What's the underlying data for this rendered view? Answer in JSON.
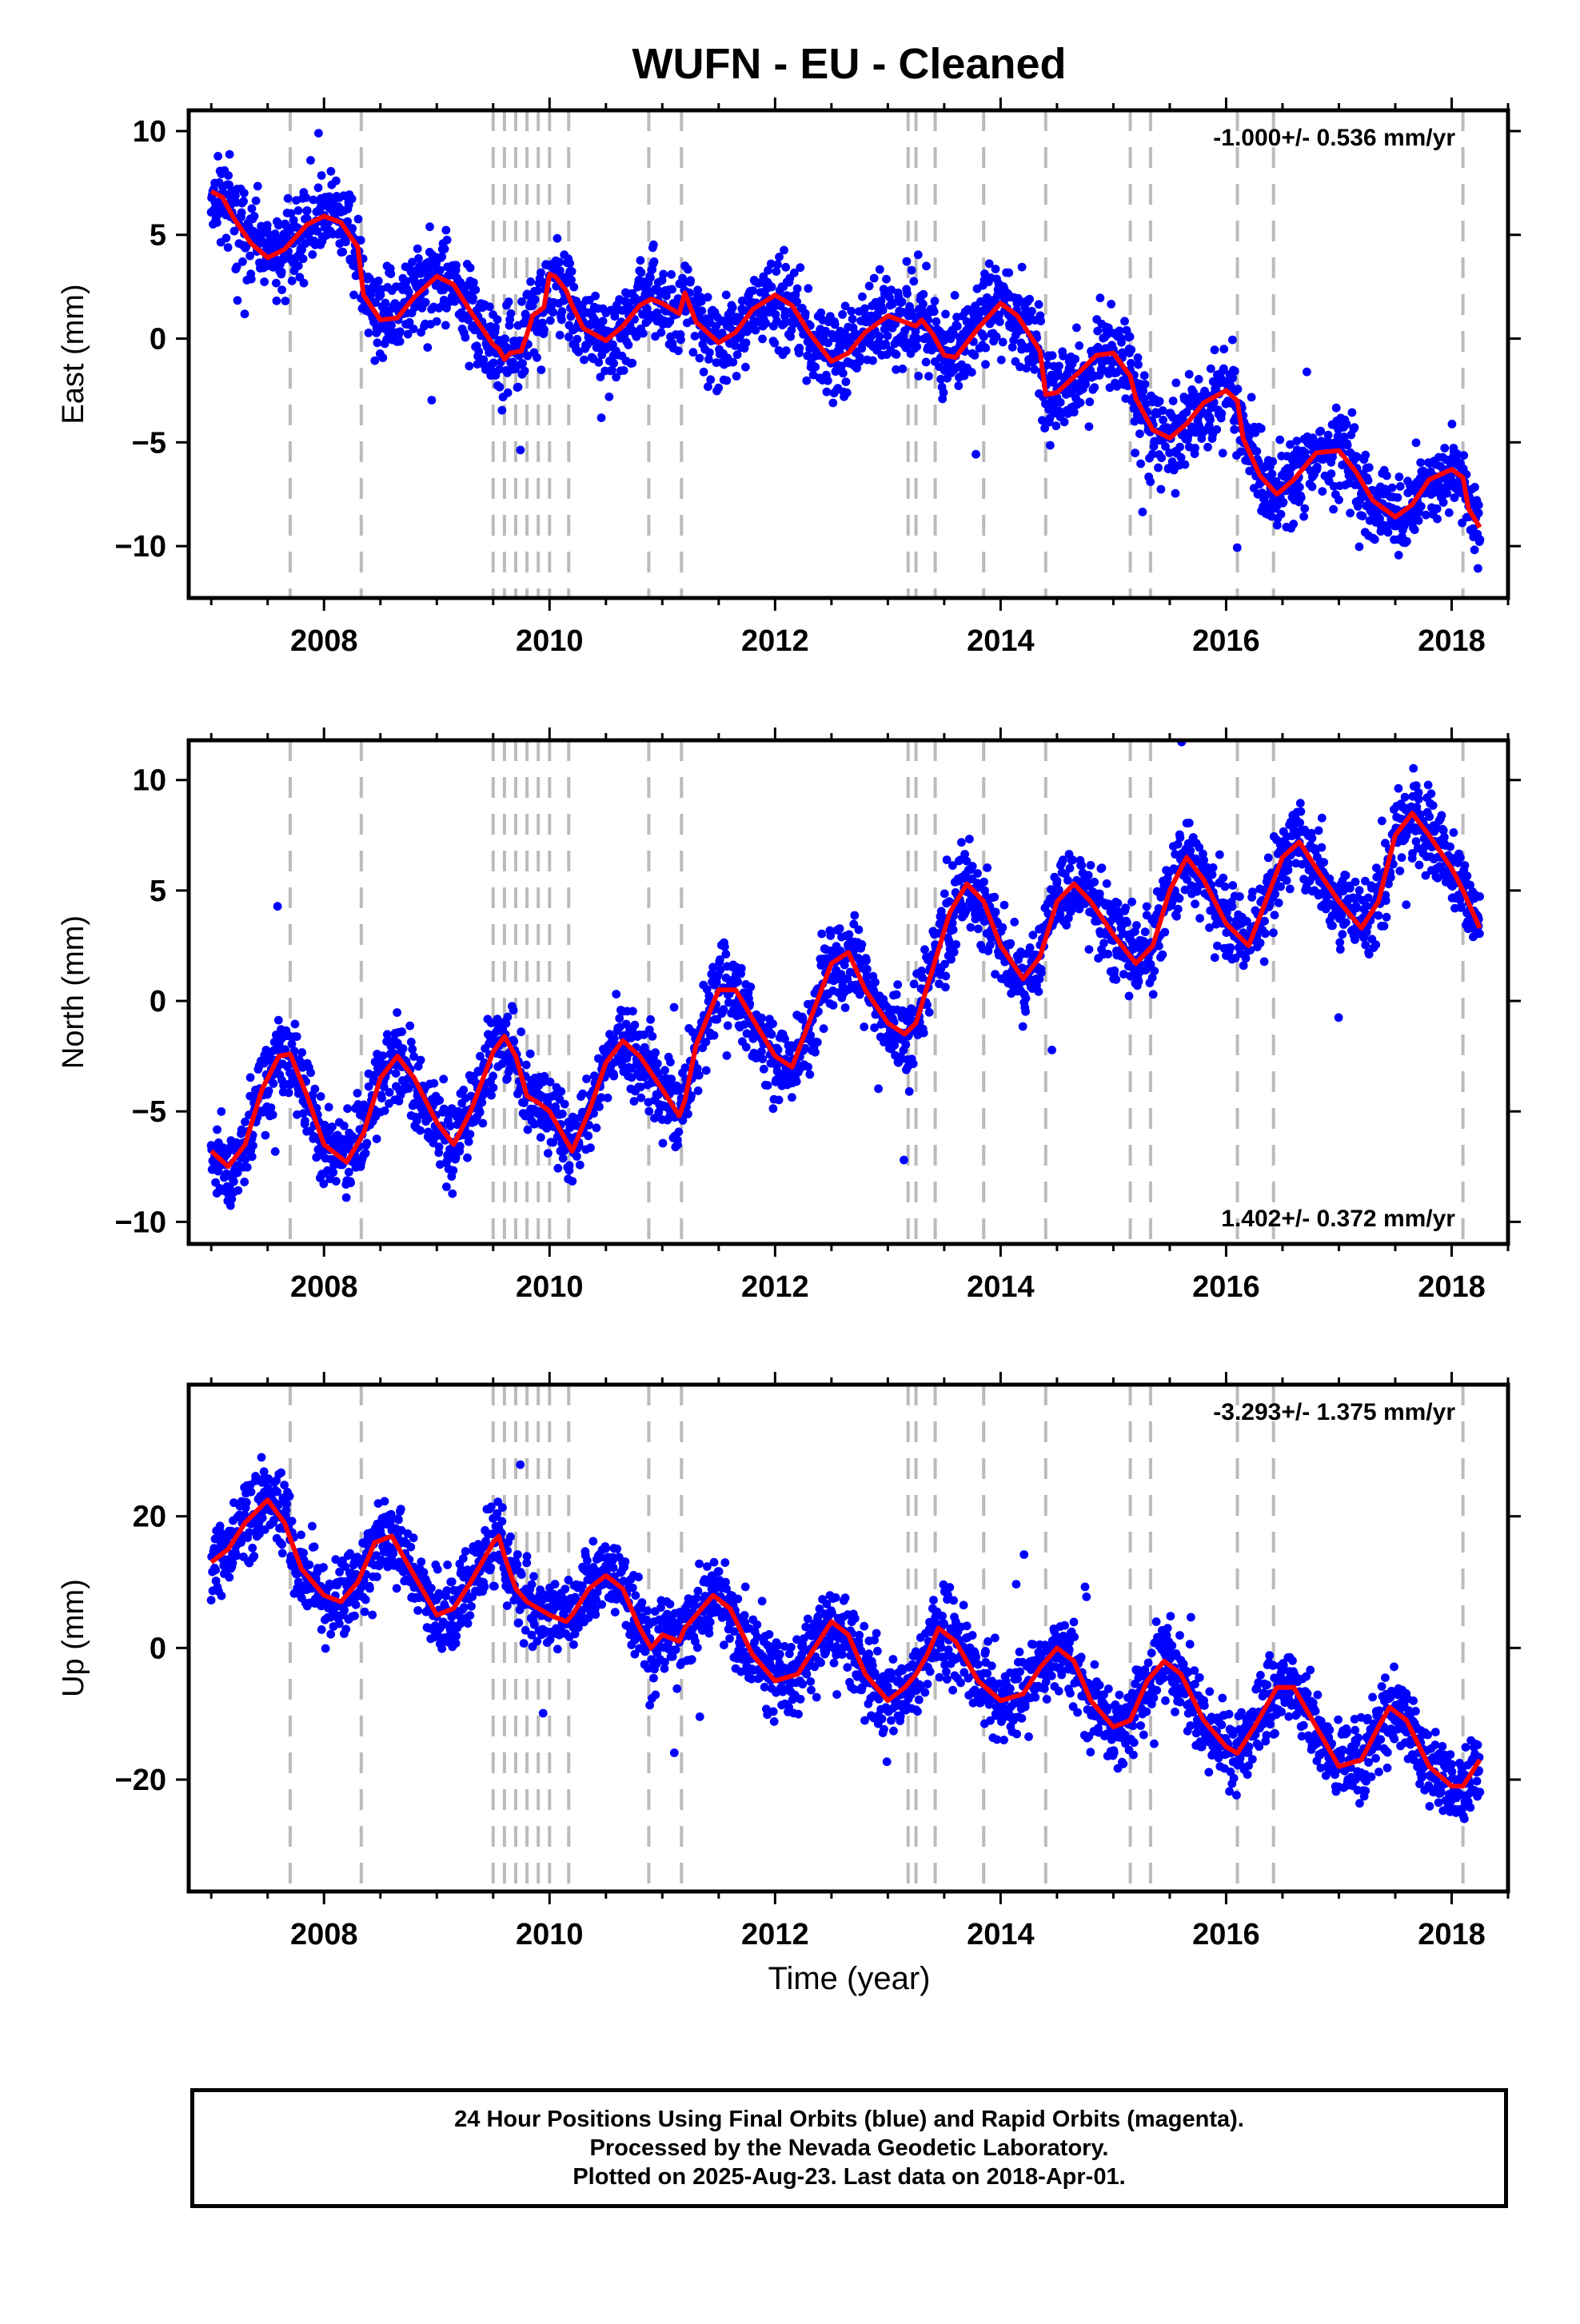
{
  "title": "WUFN  - EU - Cleaned",
  "xlabel": "Time (year)",
  "footer": {
    "lines": [
      "24 Hour Positions Using Final Orbits (blue) and Rapid Orbits (magenta).",
      "Processed by the Nevada Geodetic Laboratory.",
      "Plotted on 2025-Aug-23. Last data on 2018-Apr-01."
    ]
  },
  "colors": {
    "data": "#0000ff",
    "model": "#ff0000",
    "breaks": "#bbbbbb",
    "axes": "#000000"
  },
  "chart_data": [
    {
      "type": "scatter",
      "ylabel": "East (mm)",
      "rate": "-1.000+/- 0.536 mm/yr",
      "rate_position": "top-right",
      "xlim": [
        2006.8,
        2018.5
      ],
      "ylim": [
        -12.5,
        11
      ],
      "xticks": [
        2008,
        2010,
        2012,
        2014,
        2016,
        2018
      ],
      "yticks": [
        -10,
        -5,
        0,
        5,
        10
      ],
      "model": {
        "x": [
          2007.0,
          2007.1,
          2007.2,
          2007.35,
          2007.5,
          2007.65,
          2007.7,
          2007.85,
          2008.0,
          2008.15,
          2008.3,
          2008.35,
          2008.5,
          2008.65,
          2008.8,
          2009.0,
          2009.15,
          2009.3,
          2009.5,
          2009.55,
          2009.6,
          2009.65,
          2009.75,
          2009.8,
          2009.85,
          2009.95,
          2010.0,
          2010.05,
          2010.15,
          2010.2,
          2010.3,
          2010.5,
          2010.65,
          2010.8,
          2010.9,
          2011.0,
          2011.15,
          2011.2,
          2011.3,
          2011.5,
          2011.65,
          2011.8,
          2012.0,
          2012.15,
          2012.3,
          2012.5,
          2012.65,
          2012.8,
          2013.0,
          2013.15,
          2013.25,
          2013.3,
          2013.4,
          2013.5,
          2013.6,
          2013.8,
          2014.0,
          2014.15,
          2014.35,
          2014.4,
          2014.5,
          2014.7,
          2014.85,
          2015.0,
          2015.15,
          2015.2,
          2015.35,
          2015.5,
          2015.65,
          2015.8,
          2016.0,
          2016.1,
          2016.15,
          2016.3,
          2016.45,
          2016.6,
          2016.8,
          2017.0,
          2017.15,
          2017.3,
          2017.5,
          2017.65,
          2017.8,
          2018.0,
          2018.1,
          2018.15,
          2018.25
        ],
        "y": [
          7.1,
          6.8,
          5.8,
          4.6,
          3.9,
          4.3,
          4.6,
          5.5,
          5.9,
          5.6,
          4.4,
          2.1,
          0.9,
          1.0,
          2.0,
          3.0,
          2.6,
          1.3,
          -0.3,
          -0.5,
          -1.0,
          -0.7,
          -0.6,
          0.2,
          1.1,
          1.5,
          3.1,
          3.0,
          2.3,
          1.6,
          0.5,
          -0.1,
          0.6,
          1.6,
          1.9,
          1.7,
          1.2,
          2.2,
          0.8,
          -0.2,
          0.3,
          1.4,
          2.1,
          1.6,
          0.3,
          -1.1,
          -0.7,
          0.3,
          1.1,
          0.8,
          0.6,
          0.9,
          0.2,
          -0.8,
          -0.9,
          0.5,
          1.7,
          1.1,
          -0.6,
          -2.7,
          -2.6,
          -1.6,
          -0.8,
          -0.7,
          -1.8,
          -2.9,
          -4.4,
          -4.8,
          -4.1,
          -3.1,
          -2.5,
          -3.0,
          -4.8,
          -6.6,
          -7.5,
          -6.8,
          -5.5,
          -5.4,
          -6.4,
          -7.8,
          -8.6,
          -8.0,
          -6.8,
          -6.3,
          -6.7,
          -8.2,
          -9.1
        ],
        "amp": 1.2
      },
      "breaks": [
        2007.7,
        2008.33,
        2009.5,
        2009.6,
        2009.7,
        2009.8,
        2009.9,
        2010.0,
        2010.17,
        2010.88,
        2011.17,
        2013.18,
        2013.25,
        2013.42,
        2013.85,
        2014.4,
        2015.15,
        2015.33,
        2016.1,
        2016.42,
        2018.1
      ],
      "seed": 11
    },
    {
      "type": "scatter",
      "ylabel": "North (mm)",
      "rate": "1.402+/- 0.372 mm/yr",
      "rate_position": "bottom-right",
      "xlim": [
        2006.8,
        2018.5
      ],
      "ylim": [
        -11,
        11.8
      ],
      "xticks": [
        2008,
        2010,
        2012,
        2014,
        2016,
        2018
      ],
      "yticks": [
        -10,
        -5,
        0,
        5,
        10
      ],
      "model": {
        "x": [
          2007.0,
          2007.15,
          2007.3,
          2007.45,
          2007.6,
          2007.7,
          2007.85,
          2008.0,
          2008.2,
          2008.35,
          2008.5,
          2008.65,
          2008.8,
          2009.0,
          2009.15,
          2009.3,
          2009.5,
          2009.6,
          2009.7,
          2009.8,
          2009.9,
          2010.0,
          2010.2,
          2010.35,
          2010.5,
          2010.65,
          2010.8,
          2011.0,
          2011.15,
          2011.2,
          2011.3,
          2011.5,
          2011.65,
          2011.8,
          2012.0,
          2012.15,
          2012.3,
          2012.5,
          2012.65,
          2012.8,
          2013.0,
          2013.15,
          2013.25,
          2013.4,
          2013.55,
          2013.7,
          2013.85,
          2014.0,
          2014.2,
          2014.35,
          2014.5,
          2014.65,
          2014.8,
          2015.0,
          2015.2,
          2015.35,
          2015.5,
          2015.65,
          2015.8,
          2016.0,
          2016.2,
          2016.35,
          2016.5,
          2016.65,
          2016.8,
          2017.0,
          2017.2,
          2017.35,
          2017.5,
          2017.65,
          2017.8,
          2018.0,
          2018.1,
          2018.25
        ],
        "y": [
          -6.8,
          -7.5,
          -6.5,
          -4.0,
          -2.5,
          -2.4,
          -4.3,
          -6.5,
          -7.3,
          -6.0,
          -3.5,
          -2.5,
          -3.5,
          -5.5,
          -6.5,
          -5.0,
          -2.3,
          -1.6,
          -2.5,
          -4.3,
          -4.6,
          -5.0,
          -6.8,
          -5.0,
          -2.8,
          -1.8,
          -2.5,
          -4.0,
          -5.2,
          -4.5,
          -2.0,
          0.5,
          0.5,
          -0.8,
          -2.5,
          -3.0,
          -1.0,
          1.7,
          2.2,
          0.5,
          -1.0,
          -1.5,
          -1.0,
          1.5,
          4.0,
          5.3,
          4.5,
          2.5,
          1.0,
          2.0,
          4.5,
          5.3,
          4.5,
          3.0,
          1.7,
          2.5,
          5.0,
          6.5,
          5.5,
          3.5,
          2.5,
          4.5,
          6.5,
          7.2,
          6.0,
          4.5,
          3.3,
          4.5,
          7.5,
          8.5,
          7.5,
          6.0,
          5.0,
          3.3
        ],
        "amp": 1.1
      },
      "breaks": [
        2007.7,
        2008.33,
        2009.5,
        2009.6,
        2009.7,
        2009.8,
        2009.9,
        2010.0,
        2010.17,
        2010.88,
        2011.17,
        2013.18,
        2013.25,
        2013.42,
        2013.85,
        2014.4,
        2015.15,
        2015.33,
        2016.1,
        2016.42,
        2018.1
      ],
      "seed": 23
    },
    {
      "type": "scatter",
      "ylabel": "Up (mm)",
      "rate": "-3.293+/- 1.375 mm/yr",
      "rate_position": "top-right",
      "xlim": [
        2006.8,
        2018.5
      ],
      "ylim": [
        -37,
        40
      ],
      "xticks": [
        2008,
        2010,
        2012,
        2014,
        2016,
        2018
      ],
      "yticks": [
        -20,
        0,
        20
      ],
      "model": {
        "x": [
          2007.0,
          2007.15,
          2007.3,
          2007.5,
          2007.65,
          2007.8,
          2008.0,
          2008.15,
          2008.3,
          2008.45,
          2008.6,
          2008.8,
          2009.0,
          2009.15,
          2009.3,
          2009.5,
          2009.55,
          2009.6,
          2009.7,
          2009.8,
          2009.9,
          2010.0,
          2010.15,
          2010.2,
          2010.35,
          2010.5,
          2010.65,
          2010.8,
          2010.9,
          2011.0,
          2011.15,
          2011.2,
          2011.3,
          2011.45,
          2011.6,
          2011.8,
          2012.0,
          2012.2,
          2012.35,
          2012.5,
          2012.65,
          2012.8,
          2013.0,
          2013.15,
          2013.25,
          2013.35,
          2013.45,
          2013.6,
          2013.8,
          2014.0,
          2014.2,
          2014.35,
          2014.5,
          2014.65,
          2014.8,
          2015.0,
          2015.15,
          2015.3,
          2015.45,
          2015.6,
          2015.8,
          2016.0,
          2016.1,
          2016.25,
          2016.45,
          2016.6,
          2016.8,
          2017.0,
          2017.2,
          2017.35,
          2017.45,
          2017.6,
          2017.8,
          2018.0,
          2018.1,
          2018.25
        ],
        "y": [
          13,
          15,
          19,
          22.5,
          19,
          12,
          8,
          7,
          10,
          16,
          17,
          11,
          5,
          6,
          10,
          16,
          17,
          14,
          9,
          7,
          6,
          5,
          4,
          5,
          9,
          11,
          9,
          3,
          0,
          2,
          1,
          3,
          5,
          8,
          6,
          -1,
          -5,
          -4,
          0,
          4,
          2,
          -4,
          -8,
          -6,
          -4,
          -1,
          3,
          1,
          -5,
          -8,
          -7,
          -3,
          0,
          -2,
          -8,
          -12,
          -11,
          -5,
          -2,
          -4,
          -11,
          -15,
          -16,
          -12,
          -6,
          -6,
          -12,
          -18,
          -17,
          -12,
          -9,
          -11,
          -18,
          -21,
          -21,
          -17
        ],
        "amp": 3.5
      },
      "breaks": [
        2007.7,
        2008.33,
        2009.5,
        2009.6,
        2009.7,
        2009.8,
        2009.9,
        2010.0,
        2010.17,
        2010.88,
        2011.17,
        2013.18,
        2013.25,
        2013.42,
        2013.85,
        2014.4,
        2015.15,
        2015.33,
        2016.1,
        2016.42,
        2018.1
      ],
      "seed": 37
    }
  ]
}
